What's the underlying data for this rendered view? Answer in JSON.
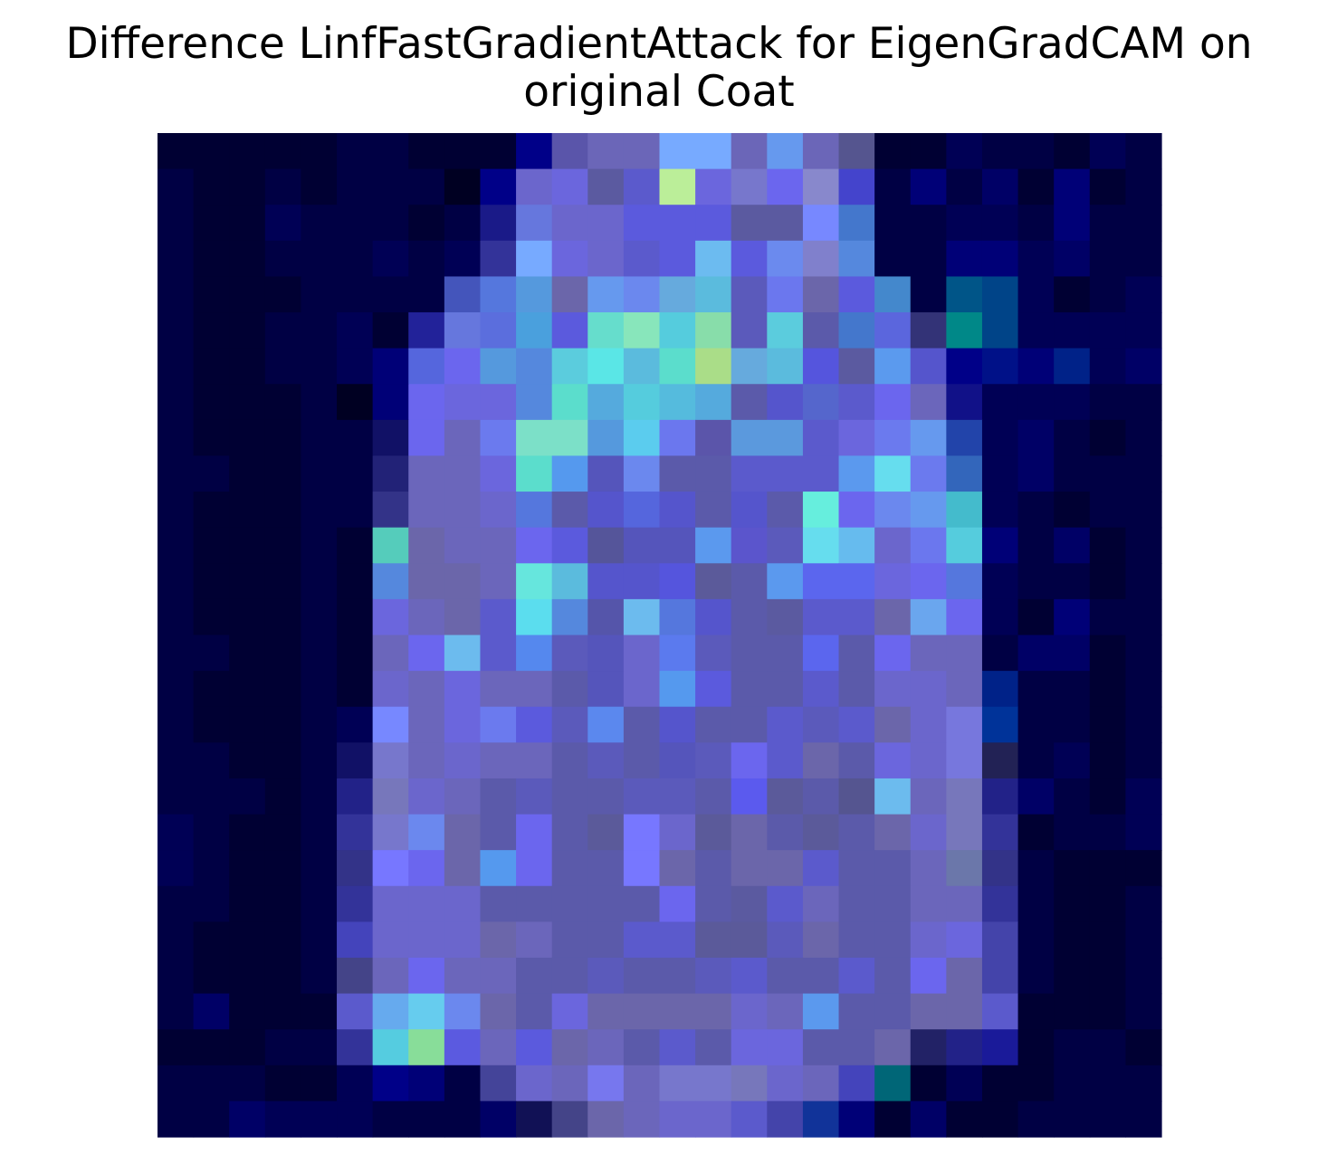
{
  "chart_data": {
    "type": "heatmap",
    "title_lines": [
      "Difference LinfFastGradientAttack for EigenGradCAM on",
      "original Coat"
    ],
    "xlabel": "",
    "ylabel": "",
    "axis": "off",
    "grid": false,
    "rows": 28,
    "cols": 28,
    "colors": [
      "#000033",
      "#000033",
      "#000033",
      "#000033",
      "#000033",
      "#000044",
      "#000044",
      "#000033",
      "#000033",
      "#000033",
      "#000088",
      "#5a55aa",
      "#6b66b8",
      "#6b66b8",
      "#77aaff",
      "#77aaff",
      "#6b66b8",
      "#6699ee",
      "#6b66b8",
      "#55558f",
      "#000033",
      "#000033",
      "#000055",
      "#000044",
      "#000044",
      "#000033",
      "#000055",
      "#000044",
      "#000044",
      "#000033",
      "#000033",
      "#000044",
      "#000033",
      "#000044",
      "#000044",
      "#000044",
      "#000022",
      "#000088",
      "#6b66cc",
      "#6b66dd",
      "#5b5aa0",
      "#5b5acc",
      "#bbee99",
      "#6b66dd",
      "#7777cc",
      "#6b66ee",
      "#8888cc",
      "#4444cc",
      "#000044",
      "#000077",
      "#000044",
      "#000066",
      "#000033",
      "#000077",
      "#000033",
      "#000044",
      "#000044",
      "#000033",
      "#000033",
      "#000055",
      "#000044",
      "#000044",
      "#000044",
      "#000033",
      "#000044",
      "#1a1a88",
      "#6677dd",
      "#6b66cc",
      "#6b66cc",
      "#5b5add",
      "#5b5add",
      "#5b5add",
      "#5b5aa0",
      "#5b5aa0",
      "#7788ff",
      "#4477cc",
      "#000044",
      "#000044",
      "#000055",
      "#000055",
      "#000044",
      "#000077",
      "#000044",
      "#000044",
      "#000044",
      "#000033",
      "#000033",
      "#000044",
      "#000044",
      "#000044",
      "#000055",
      "#000044",
      "#000055",
      "#333399",
      "#77aaff",
      "#6b66dd",
      "#6b66cc",
      "#5b5acc",
      "#5b5add",
      "#6cbbf0",
      "#5b5add",
      "#6b8aee",
      "#8080cc",
      "#5588dd",
      "#000044",
      "#000044",
      "#000077",
      "#000077",
      "#000055",
      "#000066",
      "#000044",
      "#000044",
      "#000044",
      "#000033",
      "#000033",
      "#000033",
      "#000044",
      "#000044",
      "#000044",
      "#000044",
      "#4455bb",
      "#5577dd",
      "#5599dd",
      "#6b66aa",
      "#6699ee",
      "#6b88ee",
      "#66aadd",
      "#5bbbdd",
      "#5b5abb",
      "#6b77ee",
      "#6b66aa",
      "#5b5add",
      "#4488cc",
      "#000044",
      "#005588",
      "#004488",
      "#000055",
      "#000033",
      "#000044",
      "#000055",
      "#000044",
      "#000033",
      "#000033",
      "#000044",
      "#000044",
      "#000055",
      "#000033",
      "#222299",
      "#6677dd",
      "#5b6edd",
      "#4aa0dd",
      "#5b5add",
      "#66ddcc",
      "#88e6bb",
      "#55ccdd",
      "#88ddaa",
      "#5b5abb",
      "#5bccdd",
      "#5b5aaa",
      "#4477cc",
      "#5b66dd",
      "#333377",
      "#008888",
      "#004488",
      "#000055",
      "#000055",
      "#000055",
      "#000055",
      "#000044",
      "#000033",
      "#000033",
      "#000044",
      "#000044",
      "#000055",
      "#000077",
      "#5566dd",
      "#6b66ee",
      "#5599dd",
      "#5588dd",
      "#5bccdd",
      "#5ae6e6",
      "#5bbbdd",
      "#5bddcc",
      "#aadd88",
      "#66aadd",
      "#5bbbdd",
      "#5555dd",
      "#5b5aa0",
      "#5b9aee",
      "#5555cc",
      "#000088",
      "#001188",
      "#000077",
      "#002288",
      "#000055",
      "#000066",
      "#000044",
      "#000033",
      "#000033",
      "#000033",
      "#000044",
      "#000022",
      "#000077",
      "#6b66ee",
      "#6b66dd",
      "#6b66dd",
      "#5588dd",
      "#5bddcc",
      "#55aadd",
      "#55ccdd",
      "#55bbdd",
      "#55aadd",
      "#5b5aaa",
      "#5555cc",
      "#5566cc",
      "#5b5acc",
      "#6b66ee",
      "#6b66bb",
      "#111188",
      "#000055",
      "#000055",
      "#000055",
      "#000044",
      "#000044",
      "#000044",
      "#000033",
      "#000033",
      "#000033",
      "#000044",
      "#000044",
      "#111166",
      "#6b66ee",
      "#6b66bb",
      "#6b7aee",
      "#7ce0c8",
      "#7ce0c8",
      "#5599dd",
      "#5bccee",
      "#6b77ee",
      "#5b55aa",
      "#5b99dd",
      "#5b99dd",
      "#5b5acc",
      "#6b66dd",
      "#6b7aee",
      "#6699ee",
      "#2244aa",
      "#000055",
      "#000066",
      "#000044",
      "#000033",
      "#000044",
      "#000044",
      "#000044",
      "#000033",
      "#000033",
      "#000044",
      "#000044",
      "#222277",
      "#6b66bb",
      "#6b66bb",
      "#6b66dd",
      "#5bddcc",
      "#5599ee",
      "#5555bb",
      "#6b88ee",
      "#5b5aaa",
      "#5b5aaa",
      "#5b5acc",
      "#5b5acc",
      "#5b5acc",
      "#5b99ee",
      "#66ddee",
      "#6b7aee",
      "#3366bb",
      "#000055",
      "#000066",
      "#000044",
      "#000044",
      "#000044",
      "#000044",
      "#000033",
      "#000033",
      "#000033",
      "#000044",
      "#000044",
      "#333388",
      "#6b66bb",
      "#6b66bb",
      "#6b66cc",
      "#5577dd",
      "#5b5aaa",
      "#5555cc",
      "#5566dd",
      "#5555cc",
      "#5b5aaa",
      "#5555cc",
      "#5b5aaa",
      "#66eedd",
      "#6b66ee",
      "#6b88ee",
      "#6699ee",
      "#44bbcc",
      "#000055",
      "#000044",
      "#000033",
      "#000044",
      "#000044",
      "#000044",
      "#000033",
      "#000033",
      "#000033",
      "#000044",
      "#000033",
      "#55ccbb",
      "#6b66aa",
      "#6b66bb",
      "#6b66bb",
      "#6b66ee",
      "#5b5add",
      "#55559a",
      "#5555bb",
      "#5555bb",
      "#5b99ee",
      "#5b55cc",
      "#5b5abb",
      "#66ddee",
      "#66bbee",
      "#6b66cc",
      "#6b77ee",
      "#55ccdd",
      "#000077",
      "#000044",
      "#000066",
      "#000033",
      "#000044",
      "#000044",
      "#000033",
      "#000033",
      "#000033",
      "#000044",
      "#000033",
      "#5588dd",
      "#6b66aa",
      "#6b66aa",
      "#6b66bb",
      "#66e6dd",
      "#5bbbdd",
      "#5555cc",
      "#5555cc",
      "#5555dd",
      "#5b5a9a",
      "#5b5aaa",
      "#5b99ee",
      "#5b66ee",
      "#5b66ee",
      "#6b66dd",
      "#6b66ee",
      "#5577dd",
      "#000055",
      "#000044",
      "#000044",
      "#000033",
      "#000044",
      "#000044",
      "#000033",
      "#000033",
      "#000033",
      "#000044",
      "#000033",
      "#6b66dd",
      "#6b66bb",
      "#6b66aa",
      "#5b5acc",
      "#5bddee",
      "#5588dd",
      "#5555aa",
      "#6cbbee",
      "#5577dd",
      "#5555cc",
      "#5b5aaa",
      "#5b5aa0",
      "#5b5acc",
      "#5b5acc",
      "#6b66aa",
      "#6aa6ee",
      "#6b66ee",
      "#000055",
      "#000033",
      "#000077",
      "#000044",
      "#000044",
      "#000044",
      "#000044",
      "#000033",
      "#000033",
      "#000044",
      "#000033",
      "#6b66bb",
      "#6b66ee",
      "#6cbbee",
      "#5b5acc",
      "#5588ee",
      "#5b5abb",
      "#5555bb",
      "#6b66cc",
      "#5b7aee",
      "#5b5abb",
      "#5b5aaa",
      "#5b5aaa",
      "#5b66ee",
      "#5b5aaa",
      "#6b66ee",
      "#6b66bb",
      "#6b66bb",
      "#000044",
      "#000066",
      "#000066",
      "#000033",
      "#000044",
      "#000044",
      "#000033",
      "#000033",
      "#000033",
      "#000044",
      "#000033",
      "#6b66cc",
      "#6b66bb",
      "#6b66dd",
      "#6b66bb",
      "#6b66bb",
      "#5b5aaa",
      "#5555bb",
      "#6b66cc",
      "#5599ee",
      "#5b5add",
      "#5b5aaa",
      "#5b5aaa",
      "#5b5acc",
      "#5b5aaa",
      "#6b66cc",
      "#6b66cc",
      "#6b66bb",
      "#002288",
      "#000044",
      "#000044",
      "#000033",
      "#000044",
      "#000044",
      "#000033",
      "#000033",
      "#000033",
      "#000044",
      "#000055",
      "#7788ff",
      "#6b66bb",
      "#6b66dd",
      "#6b7aee",
      "#5b5add",
      "#5b5abb",
      "#5b88ee",
      "#5b5aaa",
      "#5555cc",
      "#5b5aaa",
      "#5b5aaa",
      "#5b5acc",
      "#5b5abb",
      "#5b5acc",
      "#6b66aa",
      "#6b66cc",
      "#7777dd",
      "#003399",
      "#000044",
      "#000044",
      "#000033",
      "#000044",
      "#000044",
      "#000044",
      "#000033",
      "#000033",
      "#000044",
      "#111166",
      "#7777cc",
      "#6b66bb",
      "#6b66cc",
      "#6b66bb",
      "#6b66bb",
      "#5b5aaa",
      "#5b5abb",
      "#5b5aaa",
      "#5555bb",
      "#5b5abb",
      "#6b66ee",
      "#5b5acc",
      "#6b66aa",
      "#5b5aaa",
      "#6b66dd",
      "#6b66cc",
      "#7777dd",
      "#222255",
      "#000044",
      "#000055",
      "#000033",
      "#000044",
      "#000044",
      "#000044",
      "#000044",
      "#000033",
      "#000044",
      "#222288",
      "#7777bb",
      "#6b66cc",
      "#6b66bb",
      "#5b5aaa",
      "#5b5abb",
      "#5b5aaa",
      "#5b5aaa",
      "#5b5abb",
      "#5b5abb",
      "#5b5aaa",
      "#5b5aee",
      "#5b5a9a",
      "#5b5aaa",
      "#555590",
      "#6cbbee",
      "#6b66bb",
      "#7777bb",
      "#222288",
      "#000066",
      "#000044",
      "#000033",
      "#000055",
      "#000055",
      "#000044",
      "#000033",
      "#000033",
      "#000044",
      "#333399",
      "#7777cc",
      "#6b88ee",
      "#6b66aa",
      "#5b5aaa",
      "#6b66ee",
      "#5b5aaa",
      "#5b5a9a",
      "#7777ff",
      "#6b66cc",
      "#5b5a9a",
      "#6b66aa",
      "#5b5aaa",
      "#5b5a9a",
      "#5b5aaa",
      "#6b66aa",
      "#6b66cc",
      "#7777bb",
      "#333399",
      "#000033",
      "#000044",
      "#000044",
      "#000055",
      "#000055",
      "#000044",
      "#000033",
      "#000033",
      "#000044",
      "#333388",
      "#7777ff",
      "#6b66ee",
      "#6b66aa",
      "#5599ee",
      "#6b66ee",
      "#5b5aaa",
      "#5b5aaa",
      "#7777ff",
      "#6b66aa",
      "#5b5aaa",
      "#6b66aa",
      "#6b66aa",
      "#5b5acc",
      "#5b5aaa",
      "#5b5aaa",
      "#6b66bb",
      "#6b77aa",
      "#333388",
      "#000044",
      "#000033",
      "#000033",
      "#000033",
      "#000044",
      "#000044",
      "#000033",
      "#000033",
      "#000044",
      "#333399",
      "#6b66cc",
      "#6b66cc",
      "#6b66cc",
      "#5b5aaa",
      "#5b5aaa",
      "#5b5aaa",
      "#5b5aaa",
      "#5b5aaa",
      "#6b66ee",
      "#5b5aaa",
      "#5b5aa0",
      "#5b5acc",
      "#6b66bb",
      "#5b5aaa",
      "#5b5aaa",
      "#6b66bb",
      "#6b66bb",
      "#333399",
      "#000044",
      "#000033",
      "#000033",
      "#000044",
      "#000044",
      "#000033",
      "#000033",
      "#000033",
      "#000044",
      "#4444bb",
      "#6b66cc",
      "#6b66cc",
      "#6b66cc",
      "#6b66aa",
      "#6b66bb",
      "#5b5aaa",
      "#5b5aaa",
      "#5b5acc",
      "#5b5acc",
      "#5b5a9a",
      "#5b5a9a",
      "#5b5abb",
      "#6b66aa",
      "#5b5aaa",
      "#5b5aaa",
      "#6b66cc",
      "#6b66dd",
      "#4444aa",
      "#000044",
      "#000033",
      "#000033",
      "#000044",
      "#000044",
      "#000033",
      "#000033",
      "#000033",
      "#000044",
      "#444488",
      "#6b66bb",
      "#6b66ee",
      "#6b66bb",
      "#6b66bb",
      "#5b5aaa",
      "#5b5aaa",
      "#5b5abb",
      "#5b5aaa",
      "#5b5aaa",
      "#5b5abb",
      "#5b5acc",
      "#5b5aaa",
      "#5b5aaa",
      "#5b5acc",
      "#5b5aaa",
      "#6b66ee",
      "#6b66aa",
      "#4444aa",
      "#000044",
      "#000033",
      "#000033",
      "#000044",
      "#000044",
      "#000066",
      "#000033",
      "#000033",
      "#000033",
      "#5b5acc",
      "#66aaee",
      "#66ccee",
      "#6b88ee",
      "#6b66aa",
      "#5b5aaa",
      "#6b66dd",
      "#6b66aa",
      "#6b66aa",
      "#6b66aa",
      "#6b66aa",
      "#6b66cc",
      "#6b66bb",
      "#5b99ee",
      "#5b5aaa",
      "#5b5aaa",
      "#6b66aa",
      "#6b66aa",
      "#5b5acc",
      "#000033",
      "#000033",
      "#000033",
      "#000044",
      "#000033",
      "#000033",
      "#000033",
      "#000044",
      "#000044",
      "#333399",
      "#55cce0",
      "#88dd99",
      "#5b5ae0",
      "#6b66bb",
      "#5b5add",
      "#6b66aa",
      "#6b66bb",
      "#5b5aaa",
      "#5b5acc",
      "#5b5aaa",
      "#6b66dd",
      "#6b66dd",
      "#5b5aaa",
      "#5b5aaa",
      "#6b66aa",
      "#222266",
      "#222288",
      "#1a1a99",
      "#000033",
      "#000044",
      "#000044",
      "#000033",
      "#000044",
      "#000044",
      "#000044",
      "#000033",
      "#000033",
      "#000055",
      "#000088",
      "#000077",
      "#000044",
      "#444499",
      "#6b66cc",
      "#6b66bb",
      "#7777ee",
      "#6b66bb",
      "#7777cc",
      "#7777cc",
      "#7777bb",
      "#6b66cc",
      "#6b66bb",
      "#4444bb",
      "#006677",
      "#000033",
      "#000055",
      "#000033",
      "#000033",
      "#000044",
      "#000044",
      "#000044",
      "#000044",
      "#000044",
      "#000066",
      "#000055",
      "#000055",
      "#000055",
      "#000044",
      "#000044",
      "#000044",
      "#000066",
      "#111155",
      "#444488",
      "#6b66aa",
      "#6b66bb",
      "#6b66cc",
      "#6b66cc",
      "#5b5acc",
      "#4444aa",
      "#113399",
      "#000077",
      "#000033",
      "#000066",
      "#000033",
      "#000033",
      "#000044",
      "#000044",
      "#000044",
      "#000044"
    ]
  }
}
